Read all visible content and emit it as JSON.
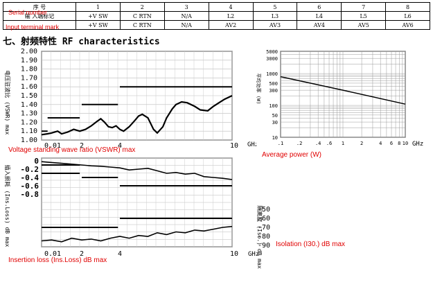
{
  "pin_table": {
    "columns": [
      "1",
      "2",
      "3",
      "4",
      "5",
      "6",
      "7",
      "8"
    ],
    "row1_label": "序 号",
    "row2_label": "输 入端标记",
    "row2": [
      "+V SW",
      "C RTN",
      "N/A",
      "L2",
      "L3",
      "L4",
      "L5",
      "L6"
    ],
    "row3": [
      "+V SW",
      "C RTN",
      "N/A",
      "AV2",
      "AV3",
      "AV4",
      "AV5",
      "AV6"
    ]
  },
  "annotations": {
    "serial_number": "Serial number",
    "input_terminal_mark": "Input terminal mark",
    "vswr": "Voltage standing wave ratio (VSWR) max",
    "avg_power": "Average power (W)",
    "ins_loss": "Insertion loss (Ins.Loss) dB max",
    "isolation": "Isolation (I30.) dB max"
  },
  "section_title": "七、射频特性 RF characteristics",
  "chart_data": [
    {
      "type": "line",
      "ylabel": "电压驻波比 (VSWR) max",
      "xlabel": "GHz",
      "x_ticks": [
        "0.01",
        "2",
        "4",
        "10"
      ],
      "y_ticks": [
        "2.00",
        "1.90",
        "1.80",
        "1.70",
        "1.60",
        "1.50",
        "1.40",
        "1.30",
        "1.20",
        "1.10",
        "1.00"
      ],
      "ylim": [
        1.0,
        2.0
      ],
      "spec_limits": [
        {
          "x": [
            0.0,
            0.3
          ],
          "y": 1.1
        },
        {
          "x": [
            0.3,
            1.9
          ],
          "y": 1.25
        },
        {
          "x": [
            2.0,
            3.9
          ],
          "y": 1.4
        },
        {
          "x": [
            4.0,
            10.0
          ],
          "y": 1.6
        }
      ],
      "measured": {
        "x": [
          0.0,
          0.3,
          0.5,
          0.8,
          1.0,
          1.3,
          1.6,
          1.9,
          2.2,
          2.5,
          2.8,
          3.0,
          3.2,
          3.4,
          3.6,
          3.8,
          4.0,
          4.2,
          4.5,
          4.8,
          5.0,
          5.2,
          5.5,
          5.8,
          6.0,
          6.3,
          6.5,
          6.8,
          7.0,
          7.3,
          7.6,
          8.0,
          8.3,
          8.7,
          9.0,
          9.3,
          9.6,
          10.0
        ],
        "y": [
          1.06,
          1.07,
          1.08,
          1.1,
          1.07,
          1.09,
          1.12,
          1.1,
          1.12,
          1.16,
          1.21,
          1.24,
          1.2,
          1.15,
          1.14,
          1.16,
          1.12,
          1.1,
          1.15,
          1.22,
          1.27,
          1.29,
          1.25,
          1.12,
          1.08,
          1.15,
          1.25,
          1.35,
          1.4,
          1.43,
          1.42,
          1.38,
          1.34,
          1.33,
          1.38,
          1.42,
          1.46,
          1.5
        ]
      }
    },
    {
      "type": "line",
      "ylabel": "平均功率 (W)",
      "xlabel": "GHz",
      "x_ticks": [
        ".1",
        ".2",
        ".4",
        ".6",
        "1",
        "2",
        "4",
        "6",
        "8",
        "10"
      ],
      "y_ticks": [
        "5000",
        "3000",
        "1000",
        "500",
        "300",
        "100",
        "50",
        "30",
        "10"
      ],
      "x_scale": "log",
      "y_scale": "log",
      "xlim": [
        0.1,
        10
      ],
      "ylim": [
        10,
        5000
      ],
      "series": [
        {
          "x": [
            0.1,
            1,
            10
          ],
          "y": [
            800,
            300,
            110
          ]
        }
      ]
    },
    {
      "type": "line",
      "ylabel": "插入损耗 (Ins.Loss) dB max",
      "ylabel_right": "隔离度 (Iso.) dB max",
      "xlabel": "GHz",
      "x_ticks": [
        "0.01",
        "2",
        "4",
        "10"
      ],
      "y_ticks_left": [
        "0",
        "-0.2",
        "-0.4",
        "-0.6",
        "-0.8"
      ],
      "y_ticks_right": [
        "-50",
        "-60",
        "-70",
        "-80",
        "-90"
      ],
      "ins_loss_limits": [
        {
          "x": [
            0.0,
            1.9
          ],
          "y": -0.1
        },
        {
          "x": [
            0.0,
            1.9
          ],
          "y": -0.3
        },
        {
          "x": [
            2.0,
            3.9
          ],
          "y": -0.4
        },
        {
          "x": [
            4.0,
            10.0
          ],
          "y": -0.6
        }
      ],
      "ins_loss_measured": {
        "x": [
          0.0,
          0.5,
          1.0,
          1.5,
          2.0,
          2.5,
          3.0,
          3.5,
          4.0,
          4.5,
          5.0,
          5.5,
          6.0,
          6.5,
          7.0,
          7.5,
          8.0,
          8.5,
          9.0,
          9.5,
          10.0
        ],
        "y": [
          -0.02,
          -0.04,
          -0.06,
          -0.08,
          -0.1,
          -0.12,
          -0.13,
          -0.15,
          -0.17,
          -0.22,
          -0.2,
          -0.18,
          -0.24,
          -0.3,
          -0.28,
          -0.32,
          -0.3,
          -0.38,
          -0.4,
          -0.42,
          -0.45
        ]
      },
      "isolation_limits": [
        {
          "x": [
            0.0,
            3.9
          ],
          "y": -70
        },
        {
          "x": [
            4.0,
            10.0
          ],
          "y": -60
        }
      ],
      "isolation_measured": {
        "x": [
          0.0,
          0.5,
          1.0,
          1.5,
          2.0,
          2.5,
          3.0,
          3.5,
          4.0,
          4.5,
          5.0,
          5.5,
          6.0,
          6.5,
          7.0,
          7.5,
          8.0,
          8.5,
          9.0,
          9.5,
          10.0
        ],
        "y": [
          -85,
          -84,
          -86,
          -82,
          -84,
          -83,
          -85,
          -82,
          -80,
          -82,
          -79,
          -80,
          -76,
          -78,
          -75,
          -76,
          -73,
          -74,
          -72,
          -70,
          -69
        ]
      }
    }
  ]
}
